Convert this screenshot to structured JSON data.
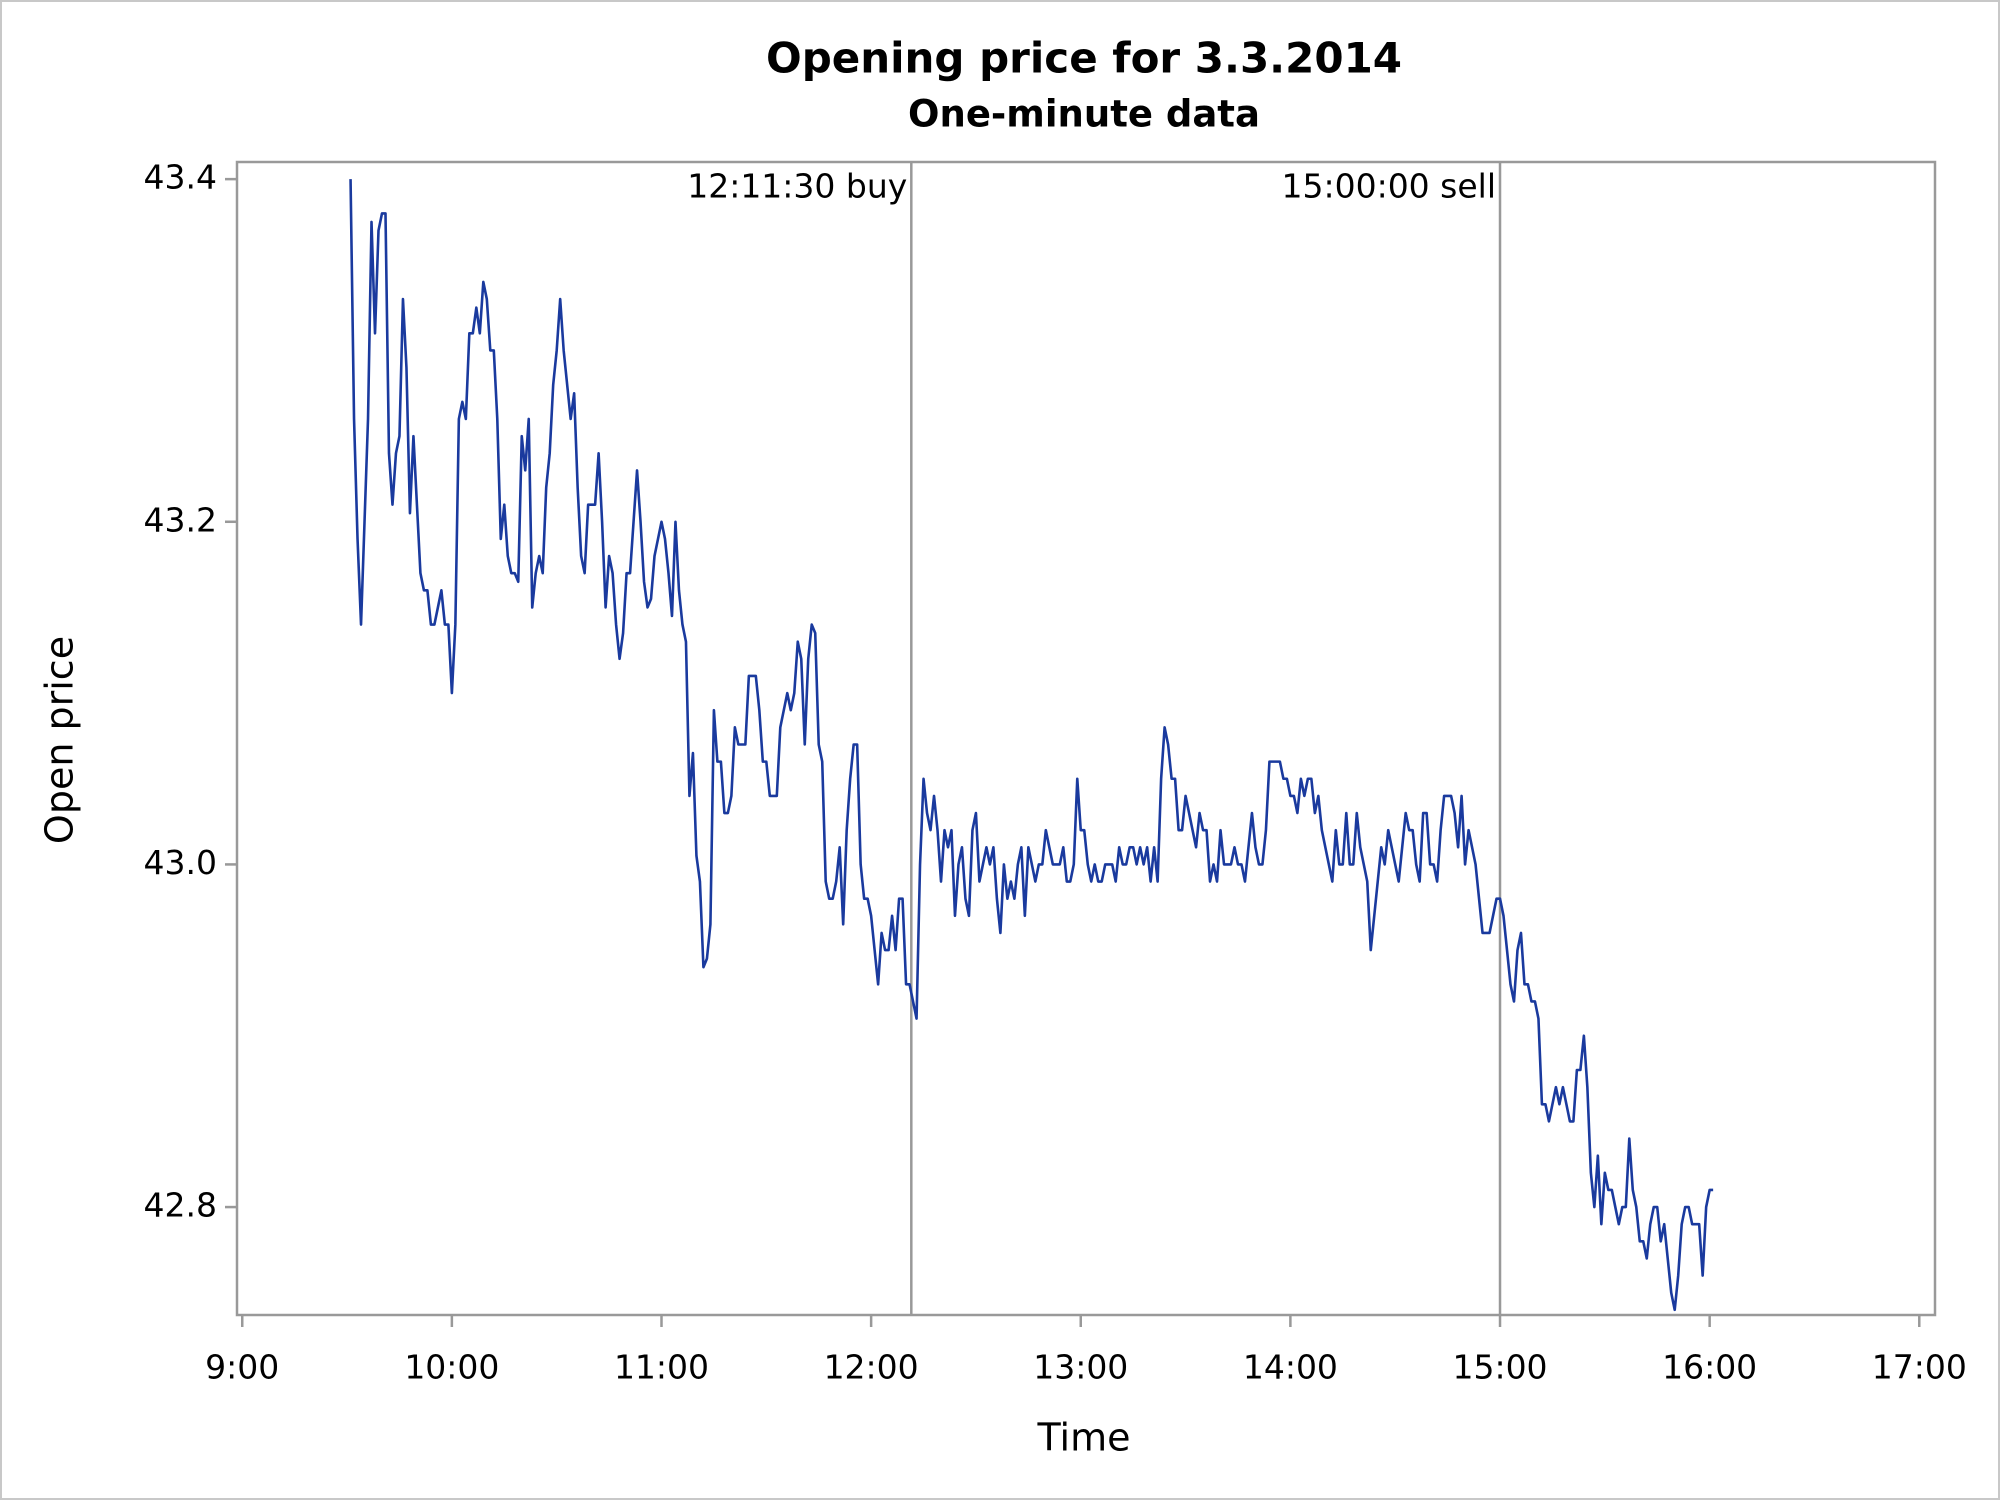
{
  "chart_data": {
    "type": "line",
    "title": "Opening price for 3.3.2014",
    "subtitle": "One-minute data",
    "xlabel": "Time",
    "ylabel": "Open price",
    "color": "#1a3a9e",
    "xlim": [
      "8:58:30",
      "17:04:30"
    ],
    "xticks": [
      "9:00",
      "10:00",
      "11:00",
      "12:00",
      "13:00",
      "14:00",
      "15:00",
      "16:00",
      "17:00"
    ],
    "ylim": [
      42.737,
      43.41
    ],
    "yticks": [
      {
        "value": 42.8,
        "label": "42.8"
      },
      {
        "value": 43,
        "label": "43.0"
      },
      {
        "value": 43.2,
        "label": "43.2"
      },
      43.4
    ],
    "reflines": [
      {
        "value": "12:11:30",
        "label": "12:11:30 buy"
      },
      {
        "value": "15:00:00",
        "label": "15:00:00 sell"
      }
    ],
    "x": [
      "9:31",
      "9:32",
      "9:33",
      "9:34",
      "9:35",
      "9:36",
      "9:37",
      "9:38",
      "9:39",
      "9:40",
      "9:41",
      "9:42",
      "9:43",
      "9:44",
      "9:45",
      "9:46",
      "9:47",
      "9:48",
      "9:49",
      "9:50",
      "9:51",
      "9:52",
      "9:53",
      "9:54",
      "9:55",
      "9:56",
      "9:57",
      "9:58",
      "9:59",
      "10:00",
      "10:01",
      "10:02",
      "10:03",
      "10:04",
      "10:05",
      "10:06",
      "10:07",
      "10:08",
      "10:09",
      "10:10",
      "10:11",
      "10:12",
      "10:13",
      "10:14",
      "10:15",
      "10:16",
      "10:17",
      "10:18",
      "10:19",
      "10:20",
      "10:21",
      "10:22",
      "10:23",
      "10:24",
      "10:25",
      "10:26",
      "10:27",
      "10:28",
      "10:29",
      "10:30",
      "10:31",
      "10:32",
      "10:33",
      "10:34",
      "10:35",
      "10:36",
      "10:37",
      "10:38",
      "10:39",
      "10:40",
      "10:41",
      "10:42",
      "10:43",
      "10:44",
      "10:45",
      "10:46",
      "10:47",
      "10:48",
      "10:49",
      "10:50",
      "10:51",
      "10:52",
      "10:53",
      "10:54",
      "10:55",
      "10:56",
      "10:57",
      "10:58",
      "10:59",
      "11:00",
      "11:01",
      "11:02",
      "11:03",
      "11:04",
      "11:05",
      "11:06",
      "11:07",
      "11:08",
      "11:09",
      "11:10",
      "11:11",
      "11:12",
      "11:13",
      "11:14",
      "11:15",
      "11:16",
      "11:17",
      "11:18",
      "11:19",
      "11:20",
      "11:21",
      "11:22",
      "11:23",
      "11:24",
      "11:25",
      "11:26",
      "11:27",
      "11:28",
      "11:29",
      "11:30",
      "11:31",
      "11:32",
      "11:33",
      "11:34",
      "11:35",
      "11:36",
      "11:37",
      "11:38",
      "11:39",
      "11:40",
      "11:41",
      "11:42",
      "11:43",
      "11:44",
      "11:45",
      "11:46",
      "11:47",
      "11:48",
      "11:49",
      "11:50",
      "11:51",
      "11:52",
      "11:53",
      "11:54",
      "11:55",
      "11:56",
      "11:57",
      "11:58",
      "11:59",
      "12:00",
      "12:01",
      "12:02",
      "12:03",
      "12:04",
      "12:05",
      "12:06",
      "12:07",
      "12:08",
      "12:09",
      "12:10",
      "12:11",
      "12:12",
      "12:13",
      "12:14",
      "12:15",
      "12:16",
      "12:17",
      "12:18",
      "12:19",
      "12:20",
      "12:21",
      "12:22",
      "12:23",
      "12:24",
      "12:25",
      "12:26",
      "12:27",
      "12:28",
      "12:29",
      "12:30",
      "12:31",
      "12:32",
      "12:33",
      "12:34",
      "12:35",
      "12:36",
      "12:37",
      "12:38",
      "12:39",
      "12:40",
      "12:41",
      "12:42",
      "12:43",
      "12:44",
      "12:45",
      "12:46",
      "12:47",
      "12:48",
      "12:49",
      "12:50",
      "12:51",
      "12:52",
      "12:53",
      "12:54",
      "12:55",
      "12:56",
      "12:57",
      "12:58",
      "12:59",
      "13:00",
      "13:01",
      "13:02",
      "13:03",
      "13:04",
      "13:05",
      "13:06",
      "13:07",
      "13:08",
      "13:09",
      "13:10",
      "13:11",
      "13:12",
      "13:13",
      "13:14",
      "13:15",
      "13:16",
      "13:17",
      "13:18",
      "13:19",
      "13:20",
      "13:21",
      "13:22",
      "13:23",
      "13:24",
      "13:25",
      "13:26",
      "13:27",
      "13:28",
      "13:29",
      "13:30",
      "13:31",
      "13:32",
      "13:33",
      "13:34",
      "13:35",
      "13:36",
      "13:37",
      "13:38",
      "13:39",
      "13:40",
      "13:41",
      "13:42",
      "13:43",
      "13:44",
      "13:45",
      "13:46",
      "13:47",
      "13:48",
      "13:49",
      "13:50",
      "13:51",
      "13:52",
      "13:53",
      "13:54",
      "13:55",
      "13:56",
      "13:57",
      "13:58",
      "13:59",
      "14:00",
      "14:01",
      "14:02",
      "14:03",
      "14:04",
      "14:05",
      "14:06",
      "14:07",
      "14:08",
      "14:09",
      "14:10",
      "14:11",
      "14:12",
      "14:13",
      "14:14",
      "14:15",
      "14:16",
      "14:17",
      "14:18",
      "14:19",
      "14:20",
      "14:21",
      "14:22",
      "14:23",
      "14:24",
      "14:25",
      "14:26",
      "14:27",
      "14:28",
      "14:29",
      "14:30",
      "14:31",
      "14:32",
      "14:33",
      "14:34",
      "14:35",
      "14:36",
      "14:37",
      "14:38",
      "14:39",
      "14:40",
      "14:41",
      "14:42",
      "14:43",
      "14:44",
      "14:45",
      "14:46",
      "14:47",
      "14:48",
      "14:49",
      "14:50",
      "14:51",
      "14:52",
      "14:53",
      "14:54",
      "14:55",
      "14:56",
      "14:57",
      "14:58",
      "14:59",
      "15:00",
      "15:01",
      "15:02",
      "15:03",
      "15:04",
      "15:05",
      "15:06",
      "15:07",
      "15:08",
      "15:09",
      "15:10",
      "15:11",
      "15:12",
      "15:13",
      "15:14",
      "15:15",
      "15:16",
      "15:17",
      "15:18",
      "15:19",
      "15:20",
      "15:21",
      "15:22",
      "15:23",
      "15:24",
      "15:25",
      "15:26",
      "15:27",
      "15:28",
      "15:29",
      "15:30",
      "15:31",
      "15:32",
      "15:33",
      "15:34",
      "15:35",
      "15:36",
      "15:37",
      "15:38",
      "15:39",
      "15:40",
      "15:41",
      "15:42",
      "15:43",
      "15:44",
      "15:45",
      "15:46",
      "15:47",
      "15:48",
      "15:49",
      "15:50",
      "15:51",
      "15:52",
      "15:53",
      "15:54",
      "15:55",
      "15:56",
      "15:57",
      "15:58",
      "15:59",
      "16:00",
      "16:01"
    ],
    "values": [
      43.4,
      43.26,
      43.19,
      43.14,
      43.2,
      43.26,
      43.375,
      43.31,
      43.37,
      43.38,
      43.38,
      43.24,
      43.21,
      43.24,
      43.25,
      43.33,
      43.29,
      43.205,
      43.25,
      43.21,
      43.17,
      43.16,
      43.16,
      43.14,
      43.14,
      43.15,
      43.16,
      43.14,
      43.14,
      43.1,
      43.14,
      43.26,
      43.27,
      43.26,
      43.31,
      43.31,
      43.325,
      43.31,
      43.34,
      43.33,
      43.3,
      43.3,
      43.26,
      43.19,
      43.21,
      43.18,
      43.17,
      43.17,
      43.165,
      43.25,
      43.23,
      43.26,
      43.15,
      43.17,
      43.18,
      43.17,
      43.22,
      43.24,
      43.28,
      43.3,
      43.33,
      43.3,
      43.28,
      43.26,
      43.275,
      43.22,
      43.18,
      43.17,
      43.21,
      43.21,
      43.21,
      43.24,
      43.2,
      43.15,
      43.18,
      43.17,
      43.14,
      43.12,
      43.135,
      43.17,
      43.17,
      43.2,
      43.23,
      43.2,
      43.165,
      43.15,
      43.155,
      43.18,
      43.19,
      43.2,
      43.19,
      43.17,
      43.145,
      43.2,
      43.16,
      43.14,
      43.13,
      43.04,
      43.065,
      43.005,
      42.99,
      42.94,
      42.945,
      42.965,
      43.09,
      43.06,
      43.06,
      43.03,
      43.03,
      43.04,
      43.08,
      43.07,
      43.07,
      43.07,
      43.11,
      43.11,
      43.11,
      43.09,
      43.06,
      43.06,
      43.04,
      43.04,
      43.04,
      43.08,
      43.09,
      43.1,
      43.09,
      43.1,
      43.13,
      43.12,
      43.07,
      43.12,
      43.14,
      43.135,
      43.07,
      43.06,
      42.99,
      42.98,
      42.98,
      42.99,
      43.01,
      42.965,
      43.02,
      43.05,
      43.07,
      43.07,
      43.0,
      42.98,
      42.98,
      42.97,
      42.95,
      42.93,
      42.96,
      42.95,
      42.95,
      42.97,
      42.95,
      42.98,
      42.98,
      42.93,
      42.93,
      42.92,
      42.91,
      43.0,
      43.05,
      43.03,
      43.02,
      43.04,
      43.02,
      42.99,
      43.02,
      43.01,
      43.02,
      42.97,
      43.0,
      43.01,
      42.98,
      42.97,
      43.02,
      43.03,
      42.99,
      43.0,
      43.01,
      43.0,
      43.01,
      42.98,
      42.96,
      43.0,
      42.98,
      42.99,
      42.98,
      43.0,
      43.01,
      42.97,
      43.01,
      43.0,
      42.99,
      43.0,
      43.0,
      43.02,
      43.01,
      43.0,
      43.0,
      43.0,
      43.01,
      42.99,
      42.99,
      43.0,
      43.05,
      43.02,
      43.02,
      43.0,
      42.99,
      43.0,
      42.99,
      42.99,
      43.0,
      43.0,
      43.0,
      42.99,
      43.01,
      43.0,
      43.0,
      43.01,
      43.01,
      43.0,
      43.01,
      43.0,
      43.01,
      42.99,
      43.01,
      42.99,
      43.05,
      43.08,
      43.07,
      43.05,
      43.05,
      43.02,
      43.02,
      43.04,
      43.03,
      43.02,
      43.01,
      43.03,
      43.02,
      43.02,
      42.99,
      43.0,
      42.99,
      43.02,
      43.0,
      43.0,
      43.0,
      43.01,
      43.0,
      43.0,
      42.99,
      43.01,
      43.03,
      43.01,
      43.0,
      43.0,
      43.02,
      43.06,
      43.06,
      43.06,
      43.06,
      43.05,
      43.05,
      43.04,
      43.04,
      43.03,
      43.05,
      43.04,
      43.05,
      43.05,
      43.03,
      43.04,
      43.02,
      43.01,
      43.0,
      42.99,
      43.02,
      43.0,
      43.0,
      43.03,
      43.0,
      43.0,
      43.03,
      43.01,
      43.0,
      42.99,
      42.95,
      42.97,
      42.99,
      43.01,
      43.0,
      43.02,
      43.01,
      43.0,
      42.99,
      43.01,
      43.03,
      43.02,
      43.02,
      43.0,
      42.99,
      43.03,
      43.03,
      43.0,
      43.0,
      42.99,
      43.02,
      43.04,
      43.04,
      43.04,
      43.03,
      43.01,
      43.04,
      43.0,
      43.02,
      43.01,
      43.0,
      42.98,
      42.96,
      42.96,
      42.96,
      42.97,
      42.98,
      42.98,
      42.97,
      42.95,
      42.93,
      42.92,
      42.95,
      42.96,
      42.93,
      42.93,
      42.92,
      42.92,
      42.91,
      42.86,
      42.86,
      42.85,
      42.86,
      42.87,
      42.86,
      42.87,
      42.86,
      42.85,
      42.85,
      42.88,
      42.88,
      42.9,
      42.87,
      42.82,
      42.8,
      42.83,
      42.79,
      42.82,
      42.81,
      42.81,
      42.8,
      42.79,
      42.8,
      42.8,
      42.84,
      42.81,
      42.8,
      42.78,
      42.78,
      42.77,
      42.79,
      42.8,
      42.8,
      42.78,
      42.79,
      42.77,
      42.75,
      42.74,
      42.76,
      42.79,
      42.8,
      42.8,
      42.79,
      42.79,
      42.79,
      42.76,
      42.8,
      42.81,
      42.81
    ]
  }
}
